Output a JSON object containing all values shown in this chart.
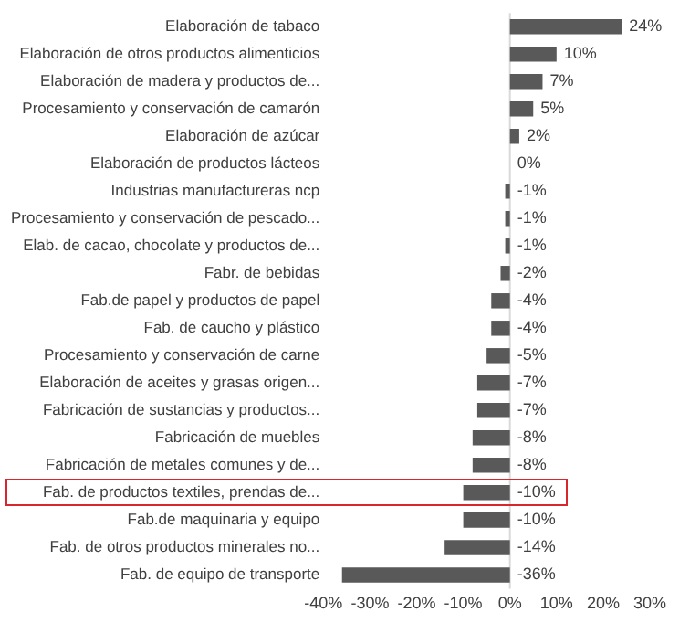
{
  "chart_data": {
    "type": "bar",
    "orientation": "horizontal",
    "categories": [
      "Elaboración de tabaco",
      "Elaboración de otros productos alimenticios",
      "Elaboración de madera y productos de...",
      "Procesamiento y conservación de camarón",
      "Elaboración de azúcar",
      "Elaboración de productos lácteos",
      "Industrias manufactureras ncp",
      "Procesamiento y conservación de pescado...",
      "Elab. de cacao, chocolate y productos de...",
      "Fabr. de bebidas",
      "Fab.de papel y productos de papel",
      "Fab. de caucho y plástico",
      "Procesamiento y conservación de carne",
      "Elaboración de aceites y grasas origen...",
      "Fabricación de sustancias y productos...",
      "Fabricación de muebles",
      "Fabricación de metales comunes y de...",
      "Fab. de productos textiles, prendas de...",
      "Fab.de maquinaria y equipo",
      "Fab. de otros productos minerales no...",
      "Fab. de equipo de transporte"
    ],
    "values": [
      24,
      10,
      7,
      5,
      2,
      0,
      -1,
      -1,
      -1,
      -2,
      -4,
      -4,
      -5,
      -7,
      -7,
      -8,
      -8,
      -10,
      -10,
      -14,
      -36
    ],
    "value_labels": [
      "24%",
      "10%",
      "7%",
      "5%",
      "2%",
      "0%",
      "-1%",
      "-1%",
      "-1%",
      "-2%",
      "-4%",
      "-4%",
      "-5%",
      "-7%",
      "-7%",
      "-8%",
      "-8%",
      "-10%",
      "-10%",
      "-14%",
      "-36%"
    ],
    "color": "#595959",
    "xlim": [
      -40,
      30
    ],
    "xticks": [
      {
        "value": -40,
        "label": "-40%"
      },
      {
        "value": -30,
        "label": "-30%"
      },
      {
        "value": -20,
        "label": "-20%"
      },
      {
        "value": -10,
        "label": "-10%"
      },
      {
        "value": 0,
        "label": "0%"
      },
      {
        "value": 10,
        "label": "10%"
      },
      {
        "value": 20,
        "label": "20%"
      },
      {
        "value": 30,
        "label": "30%"
      }
    ],
    "ref_lines": [
      {
        "axis": "x",
        "value": 0,
        "color": "#d9d9d9"
      }
    ],
    "grid": false,
    "legend": false
  }
}
